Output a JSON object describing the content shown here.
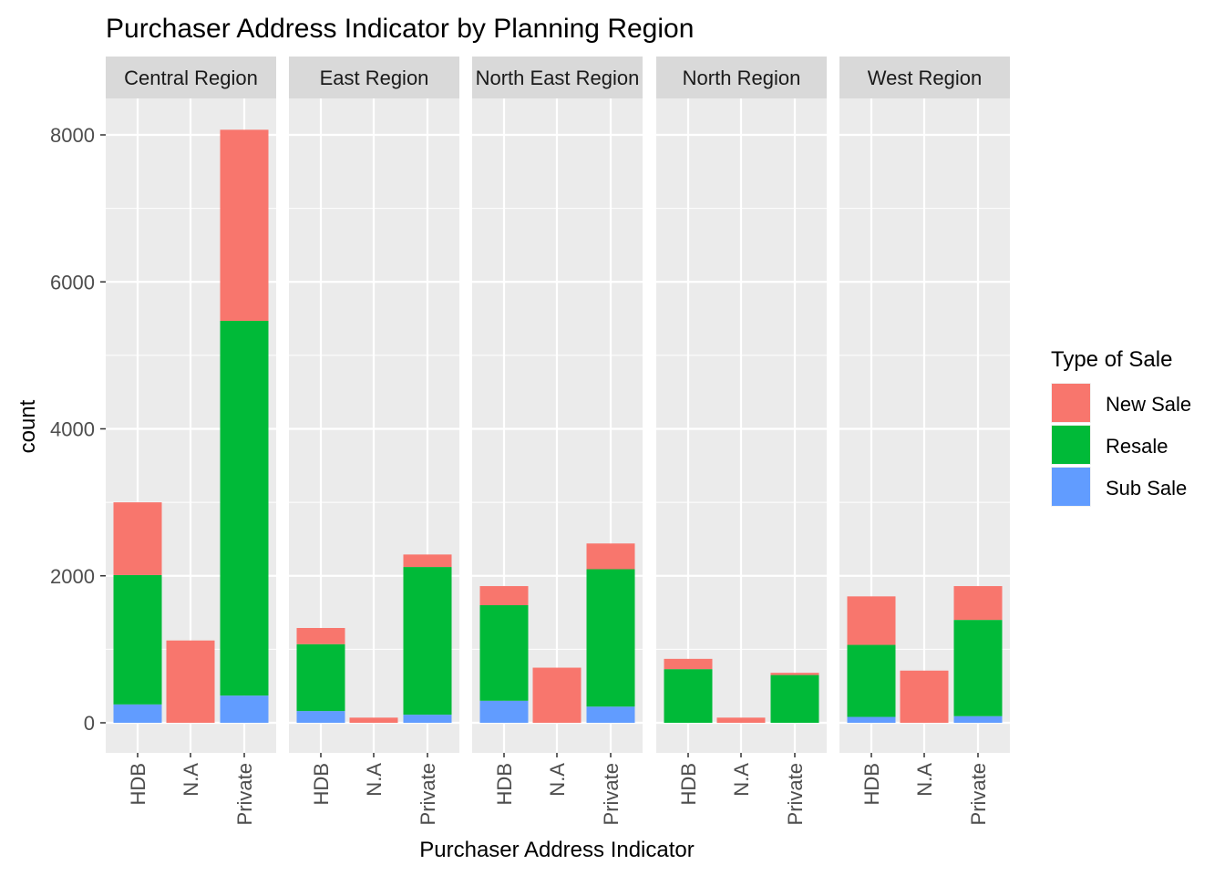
{
  "chart_data": {
    "type": "bar",
    "stacked": true,
    "faceted": true,
    "title": "Purchaser Address Indicator by Planning Region",
    "xlabel": "Purchaser Address Indicator",
    "ylabel": "count",
    "ylim": [
      -400,
      8800
    ],
    "yticks": [
      0,
      2000,
      4000,
      6000,
      8000
    ],
    "categories": [
      "HDB",
      "N.A",
      "Private"
    ],
    "legend": {
      "title": "Type of Sale",
      "position": "right",
      "entries": [
        "New Sale",
        "Resale",
        "Sub Sale"
      ]
    },
    "series_colors": {
      "New Sale": "#F8766D",
      "Resale": "#00BA38",
      "Sub Sale": "#619CFF"
    },
    "panel_background": "#EBEBEB",
    "strip_background": "#D9D9D9",
    "grid": true,
    "facets": [
      {
        "name": "Central Region",
        "series": [
          {
            "name": "Sub Sale",
            "values": [
              250,
              0,
              370
            ]
          },
          {
            "name": "Resale",
            "values": [
              1760,
              0,
              5100
            ]
          },
          {
            "name": "New Sale",
            "values": [
              990,
              1120,
              2600
            ]
          }
        ]
      },
      {
        "name": "East Region",
        "series": [
          {
            "name": "Sub Sale",
            "values": [
              160,
              0,
              110
            ]
          },
          {
            "name": "Resale",
            "values": [
              910,
              0,
              2010
            ]
          },
          {
            "name": "New Sale",
            "values": [
              220,
              70,
              170
            ]
          }
        ]
      },
      {
        "name": "North East Region",
        "series": [
          {
            "name": "Sub Sale",
            "values": [
              300,
              0,
              220
            ]
          },
          {
            "name": "Resale",
            "values": [
              1300,
              0,
              1870
            ]
          },
          {
            "name": "New Sale",
            "values": [
              260,
              750,
              350
            ]
          }
        ]
      },
      {
        "name": "North Region",
        "series": [
          {
            "name": "Sub Sale",
            "values": [
              0,
              0,
              0
            ]
          },
          {
            "name": "Resale",
            "values": [
              730,
              0,
              650
            ]
          },
          {
            "name": "New Sale",
            "values": [
              140,
              70,
              30
            ]
          }
        ]
      },
      {
        "name": "West Region",
        "series": [
          {
            "name": "Sub Sale",
            "values": [
              80,
              0,
              90
            ]
          },
          {
            "name": "Resale",
            "values": [
              980,
              0,
              1310
            ]
          },
          {
            "name": "New Sale",
            "values": [
              660,
              710,
              460
            ]
          }
        ]
      }
    ]
  }
}
